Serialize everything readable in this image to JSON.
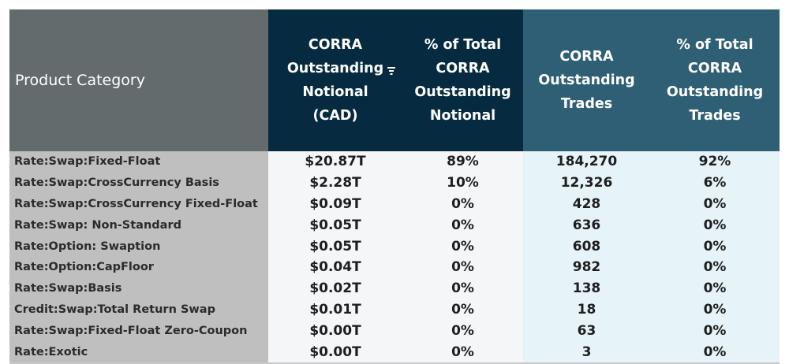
{
  "table": {
    "headers": {
      "category": "Product Category",
      "notional": "CORRA\nOutstanding\nNotional\n(CAD)",
      "pct_notional": "% of Total\nCORRA\nOutstanding\nNotional",
      "trades": "CORRA\nOutstanding\nTrades",
      "pct_trades": "% of Total\nCORRA\nOutstanding\nTrades"
    },
    "filter_icon": "filter-icon",
    "colors": {
      "category_header": "#636b6d",
      "dark_header": "#062b40",
      "teal_header": "#2e5f74",
      "category_cell": "#bfbfbf",
      "notional_cells": "#f4f6f8",
      "trade_cells": "#e6f4f9"
    },
    "rows": [
      {
        "category": "Rate:Swap:Fixed-Float",
        "notional": "$20.87T",
        "pct_notional": "89%",
        "trades": "184,270",
        "pct_trades": "92%"
      },
      {
        "category": "Rate:Swap:CrossCurrency Basis",
        "notional": "$2.28T",
        "pct_notional": "10%",
        "trades": "12,326",
        "pct_trades": "6%"
      },
      {
        "category": "Rate:Swap:CrossCurrency Fixed-Float",
        "notional": "$0.09T",
        "pct_notional": "0%",
        "trades": "428",
        "pct_trades": "0%"
      },
      {
        "category": "Rate:Swap: Non-Standard",
        "notional": "$0.05T",
        "pct_notional": "0%",
        "trades": "636",
        "pct_trades": "0%"
      },
      {
        "category": "Rate:Option: Swaption",
        "notional": "$0.05T",
        "pct_notional": "0%",
        "trades": "608",
        "pct_trades": "0%"
      },
      {
        "category": "Rate:Option:CapFloor",
        "notional": "$0.04T",
        "pct_notional": "0%",
        "trades": "982",
        "pct_trades": "0%"
      },
      {
        "category": "Rate:Swap:Basis",
        "notional": "$0.02T",
        "pct_notional": "0%",
        "trades": "138",
        "pct_trades": "0%"
      },
      {
        "category": "Credit:Swap:Total Return Swap",
        "notional": "$0.01T",
        "pct_notional": "0%",
        "trades": "18",
        "pct_trades": "0%"
      },
      {
        "category": "Rate:Swap:Fixed-Float Zero-Coupon",
        "notional": "$0.00T",
        "pct_notional": "0%",
        "trades": "63",
        "pct_trades": "0%"
      },
      {
        "category": "Rate:Exotic",
        "notional": "$0.00T",
        "pct_notional": "0%",
        "trades": "3",
        "pct_trades": "0%"
      }
    ]
  }
}
